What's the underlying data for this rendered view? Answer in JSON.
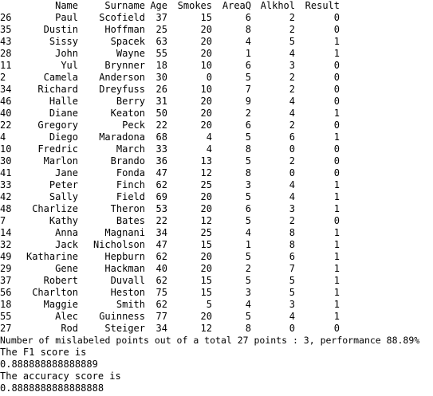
{
  "table": {
    "columns": [
      "",
      "Name",
      "Surname",
      "Age",
      "Smokes",
      "AreaQ",
      "Alkhol",
      "Result"
    ],
    "rows": [
      [
        "26",
        "Paul",
        "Scofield",
        "37",
        "15",
        "6",
        "2",
        "0"
      ],
      [
        "35",
        "Dustin",
        "Hoffman",
        "25",
        "20",
        "8",
        "2",
        "0"
      ],
      [
        "43",
        "Sissy",
        "Spacek",
        "63",
        "20",
        "4",
        "5",
        "1"
      ],
      [
        "28",
        "John",
        "Wayne",
        "55",
        "20",
        "1",
        "4",
        "1"
      ],
      [
        "11",
        "Yul",
        "Brynner",
        "18",
        "10",
        "6",
        "3",
        "0"
      ],
      [
        "2",
        "Camela",
        "Anderson",
        "30",
        "0",
        "5",
        "2",
        "0"
      ],
      [
        "34",
        "Richard",
        "Dreyfuss",
        "26",
        "10",
        "7",
        "2",
        "0"
      ],
      [
        "46",
        "Halle",
        "Berry",
        "31",
        "20",
        "9",
        "4",
        "0"
      ],
      [
        "40",
        "Diane",
        "Keaton",
        "50",
        "20",
        "2",
        "4",
        "1"
      ],
      [
        "22",
        "Gregory",
        "Peck",
        "22",
        "20",
        "6",
        "2",
        "0"
      ],
      [
        "4",
        "Diego",
        "Maradona",
        "68",
        "4",
        "5",
        "6",
        "1"
      ],
      [
        "10",
        "Fredric",
        "March",
        "33",
        "4",
        "8",
        "0",
        "0"
      ],
      [
        "30",
        "Marlon",
        "Brando",
        "36",
        "13",
        "5",
        "2",
        "0"
      ],
      [
        "41",
        "Jane",
        "Fonda",
        "47",
        "12",
        "8",
        "0",
        "0"
      ],
      [
        "33",
        "Peter",
        "Finch",
        "62",
        "25",
        "3",
        "4",
        "1"
      ],
      [
        "42",
        "Sally",
        "Field",
        "69",
        "20",
        "5",
        "4",
        "1"
      ],
      [
        "48",
        "Charlize",
        "Theron",
        "53",
        "20",
        "6",
        "3",
        "1"
      ],
      [
        "7",
        "Kathy",
        "Bates",
        "22",
        "12",
        "5",
        "2",
        "0"
      ],
      [
        "14",
        "Anna",
        "Magnani",
        "34",
        "25",
        "4",
        "8",
        "1"
      ],
      [
        "32",
        "Jack",
        "Nicholson",
        "47",
        "15",
        "1",
        "8",
        "1"
      ],
      [
        "49",
        "Katharine",
        "Hepburn",
        "62",
        "20",
        "5",
        "6",
        "1"
      ],
      [
        "29",
        "Gene",
        "Hackman",
        "40",
        "20",
        "2",
        "7",
        "1"
      ],
      [
        "37",
        "Robert",
        "Duvall",
        "62",
        "15",
        "5",
        "5",
        "1"
      ],
      [
        "56",
        "Charlton",
        "Heston",
        "75",
        "15",
        "3",
        "5",
        "1"
      ],
      [
        "18",
        "Maggie",
        "Smith",
        "62",
        "5",
        "4",
        "3",
        "1"
      ],
      [
        "55",
        "Alec",
        "Guinness",
        "77",
        "20",
        "5",
        "4",
        "1"
      ],
      [
        "27",
        "Rod",
        "Steiger",
        "34",
        "12",
        "8",
        "0",
        "0"
      ]
    ]
  },
  "output": {
    "mislabeled": "Number of mislabeled points out of a total 27 points : 3, performance 88.89%",
    "f1_label": "The F1 score is",
    "f1_value": "0.888888888888889",
    "accuracy_label": "The accuracy score is",
    "accuracy_value": "0.8888888888888888"
  }
}
